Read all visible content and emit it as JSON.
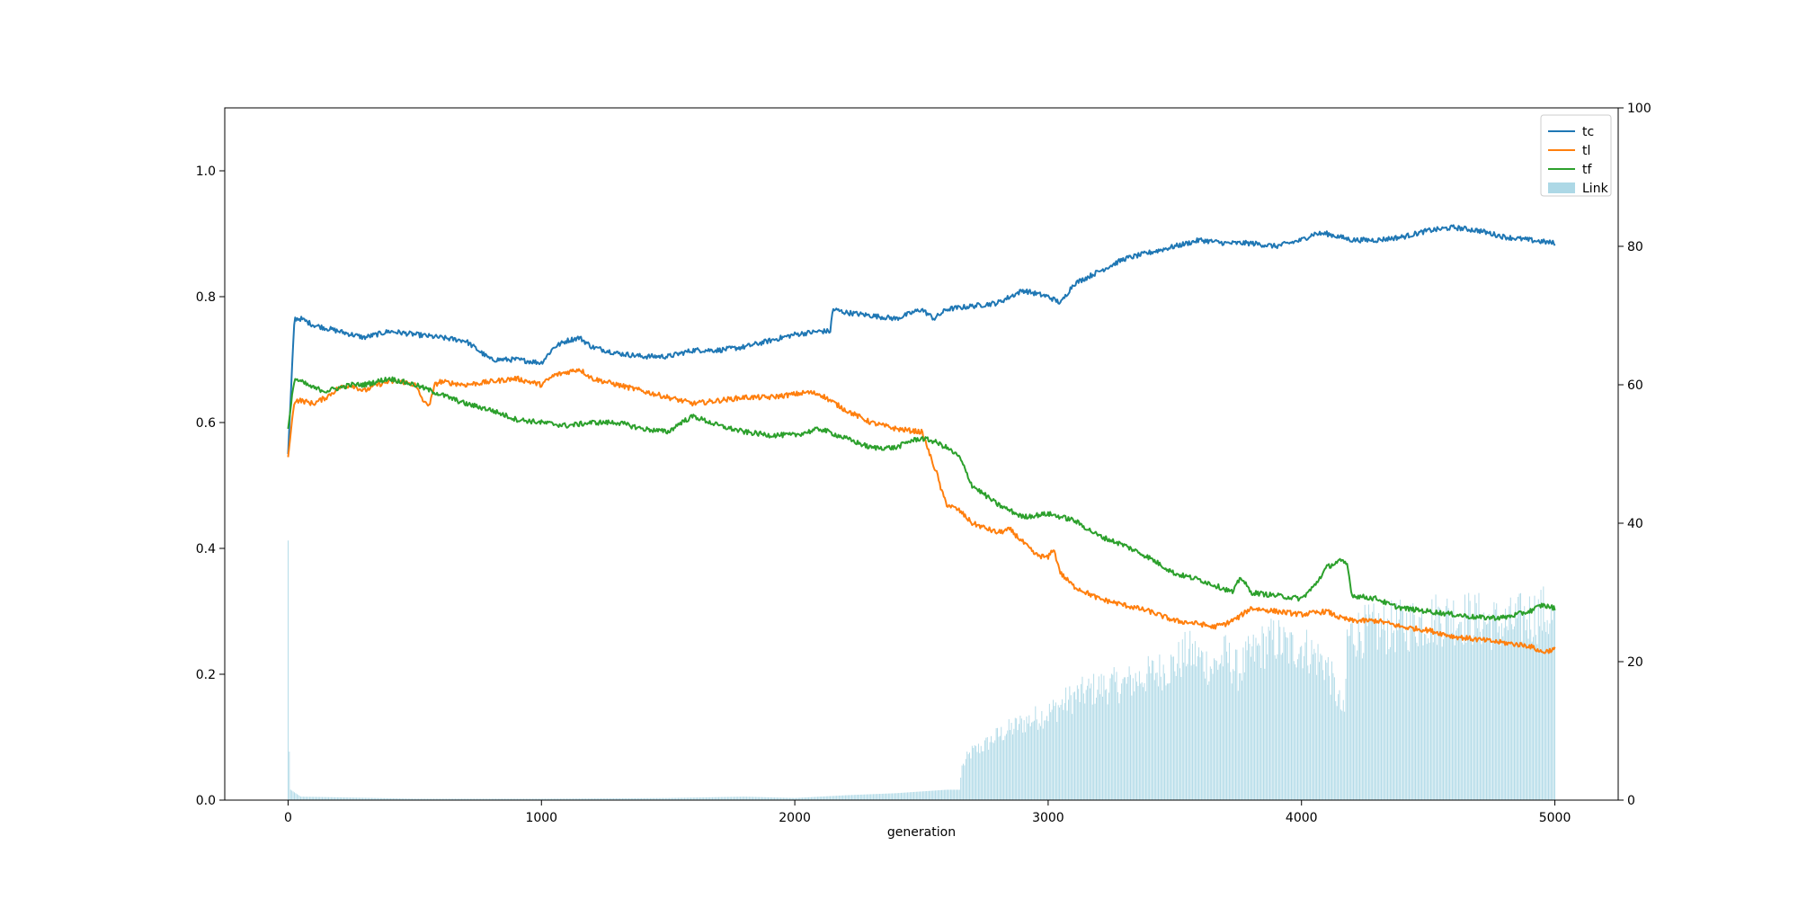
{
  "chart_data": {
    "type": "line",
    "xlabel": "generation",
    "ylabel": "",
    "ylabel_right": "",
    "xlim": [
      -250,
      5250
    ],
    "ylim": [
      0,
      1.1
    ],
    "ylim_right": [
      0,
      100
    ],
    "x_ticks": [
      0,
      1000,
      2000,
      3000,
      4000,
      5000
    ],
    "y_ticks": [
      0.0,
      0.2,
      0.4,
      0.6,
      0.8,
      1.0
    ],
    "y_ticks_right": [
      0,
      20,
      40,
      60,
      80,
      100
    ],
    "x_tick_labels": [
      "0",
      "1000",
      "2000",
      "3000",
      "4000",
      "5000"
    ],
    "y_tick_labels": [
      "0.0",
      "0.2",
      "0.4",
      "0.6",
      "0.8",
      "1.0"
    ],
    "y_tick_labels_right": [
      "0",
      "20",
      "40",
      "60",
      "80",
      "100"
    ],
    "grid": false,
    "legend_position": "top-right",
    "colors": {
      "tc": "#1f77b4",
      "tl": "#ff7f0e",
      "tf": "#2ca02c",
      "Link": "#add8e6"
    },
    "series": [
      {
        "name": "tc",
        "axis": "left",
        "kind": "line",
        "x": [
          0,
          25,
          50,
          100,
          150,
          200,
          250,
          300,
          350,
          400,
          500,
          600,
          700,
          800,
          900,
          1000,
          1050,
          1100,
          1150,
          1200,
          1300,
          1400,
          1500,
          1600,
          1700,
          1800,
          1900,
          2000,
          2100,
          2140,
          2150,
          2200,
          2300,
          2400,
          2500,
          2550,
          2600,
          2700,
          2800,
          2850,
          2900,
          3000,
          3050,
          3100,
          3200,
          3300,
          3400,
          3500,
          3600,
          3700,
          3800,
          3900,
          4000,
          4050,
          4100,
          4200,
          4300,
          4400,
          4500,
          4600,
          4700,
          4800,
          4900,
          5000
        ],
        "y": [
          0.55,
          0.765,
          0.765,
          0.755,
          0.75,
          0.745,
          0.74,
          0.735,
          0.74,
          0.745,
          0.74,
          0.735,
          0.73,
          0.7,
          0.7,
          0.695,
          0.72,
          0.73,
          0.735,
          0.72,
          0.71,
          0.705,
          0.705,
          0.715,
          0.715,
          0.72,
          0.73,
          0.74,
          0.745,
          0.745,
          0.78,
          0.775,
          0.77,
          0.765,
          0.78,
          0.765,
          0.78,
          0.785,
          0.79,
          0.8,
          0.81,
          0.8,
          0.79,
          0.82,
          0.84,
          0.86,
          0.87,
          0.88,
          0.89,
          0.885,
          0.885,
          0.88,
          0.89,
          0.9,
          0.9,
          0.89,
          0.89,
          0.895,
          0.905,
          0.91,
          0.905,
          0.895,
          0.89,
          0.885
        ]
      },
      {
        "name": "tl",
        "axis": "left",
        "kind": "line",
        "x": [
          0,
          25,
          50,
          100,
          150,
          200,
          250,
          300,
          350,
          400,
          450,
          500,
          520,
          540,
          560,
          580,
          600,
          700,
          800,
          900,
          1000,
          1050,
          1100,
          1150,
          1200,
          1300,
          1400,
          1500,
          1600,
          1700,
          1800,
          1900,
          2000,
          2050,
          2100,
          2200,
          2300,
          2400,
          2500,
          2520,
          2540,
          2560,
          2580,
          2600,
          2650,
          2700,
          2800,
          2850,
          2900,
          2950,
          3000,
          3020,
          3050,
          3100,
          3200,
          3300,
          3400,
          3500,
          3600,
          3650,
          3700,
          3750,
          3800,
          3900,
          4000,
          4100,
          4150,
          4200,
          4300,
          4400,
          4500,
          4600,
          4700,
          4800,
          4900,
          4950,
          5000
        ],
        "y": [
          0.545,
          0.635,
          0.635,
          0.63,
          0.64,
          0.655,
          0.66,
          0.65,
          0.66,
          0.665,
          0.665,
          0.66,
          0.645,
          0.63,
          0.63,
          0.66,
          0.665,
          0.66,
          0.665,
          0.67,
          0.66,
          0.675,
          0.68,
          0.685,
          0.67,
          0.66,
          0.65,
          0.64,
          0.63,
          0.635,
          0.64,
          0.64,
          0.645,
          0.648,
          0.645,
          0.62,
          0.6,
          0.59,
          0.585,
          0.565,
          0.54,
          0.52,
          0.49,
          0.47,
          0.46,
          0.44,
          0.425,
          0.43,
          0.41,
          0.39,
          0.385,
          0.4,
          0.36,
          0.34,
          0.32,
          0.31,
          0.3,
          0.285,
          0.28,
          0.275,
          0.28,
          0.29,
          0.305,
          0.3,
          0.295,
          0.3,
          0.29,
          0.285,
          0.285,
          0.275,
          0.27,
          0.26,
          0.255,
          0.25,
          0.245,
          0.235,
          0.24
        ]
      },
      {
        "name": "tf",
        "axis": "left",
        "kind": "line",
        "x": [
          0,
          25,
          50,
          100,
          150,
          200,
          250,
          300,
          350,
          400,
          500,
          600,
          700,
          800,
          900,
          1000,
          1100,
          1200,
          1300,
          1400,
          1500,
          1550,
          1600,
          1700,
          1800,
          1900,
          2000,
          2050,
          2100,
          2200,
          2300,
          2400,
          2450,
          2500,
          2550,
          2600,
          2650,
          2700,
          2800,
          2900,
          3000,
          3100,
          3200,
          3300,
          3400,
          3500,
          3600,
          3700,
          3730,
          3760,
          3800,
          3900,
          4000,
          4050,
          4100,
          4150,
          4180,
          4200,
          4300,
          4350,
          4400,
          4500,
          4600,
          4700,
          4800,
          4900,
          4950,
          5000
        ],
        "y": [
          0.59,
          0.67,
          0.665,
          0.655,
          0.65,
          0.655,
          0.66,
          0.66,
          0.665,
          0.67,
          0.66,
          0.645,
          0.63,
          0.62,
          0.605,
          0.6,
          0.595,
          0.6,
          0.6,
          0.59,
          0.585,
          0.6,
          0.61,
          0.595,
          0.585,
          0.58,
          0.58,
          0.585,
          0.59,
          0.575,
          0.56,
          0.56,
          0.57,
          0.575,
          0.57,
          0.56,
          0.545,
          0.5,
          0.47,
          0.45,
          0.455,
          0.445,
          0.42,
          0.405,
          0.385,
          0.36,
          0.35,
          0.335,
          0.33,
          0.355,
          0.33,
          0.325,
          0.32,
          0.34,
          0.37,
          0.38,
          0.375,
          0.325,
          0.32,
          0.31,
          0.305,
          0.3,
          0.295,
          0.29,
          0.29,
          0.3,
          0.31,
          0.305
        ]
      },
      {
        "name": "Link",
        "axis": "right",
        "kind": "bar",
        "x": [
          0,
          5,
          10,
          50,
          500,
          1000,
          1500,
          1800,
          2000,
          2200,
          2400,
          2600,
          2650,
          2660,
          2680,
          2700,
          2750,
          2800,
          2900,
          3000,
          3100,
          3200,
          3300,
          3400,
          3500,
          3550,
          3600,
          3650,
          3700,
          3750,
          3800,
          3850,
          3900,
          3950,
          4000,
          4050,
          4100,
          4150,
          4170,
          4180,
          4200,
          4300,
          4400,
          4500,
          4600,
          4700,
          4800,
          4900,
          4950,
          5000
        ],
        "y": [
          37.5,
          7,
          1.5,
          0.5,
          0.2,
          0.2,
          0.3,
          0.5,
          0.3,
          0.7,
          1,
          1.5,
          1.5,
          5,
          6.5,
          7.5,
          8.5,
          10,
          12,
          13.5,
          16,
          17.5,
          18,
          19.5,
          21,
          23,
          22,
          20.5,
          22.5,
          20,
          22.5,
          24,
          25,
          23.5,
          24,
          22.5,
          21,
          15,
          13,
          25,
          26,
          26.5,
          27,
          28,
          28.5,
          28,
          27,
          28.5,
          29,
          28
        ]
      }
    ]
  }
}
